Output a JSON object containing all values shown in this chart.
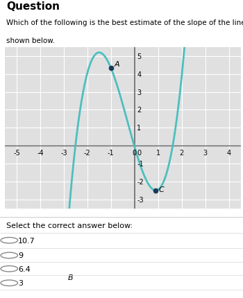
{
  "title": "Question",
  "question_line1": "Which of the following is the best estimate of the slope of the line tangent to the point B on the graph",
  "question_line2": "shown below.",
  "select_text": "Select the correct answer below:",
  "choices": [
    "10.7",
    "9",
    "6.4",
    "3"
  ],
  "xlim": [
    -5.5,
    4.5
  ],
  "ylim": [
    -3.5,
    5.5
  ],
  "xticks": [
    -5,
    -4,
    -3,
    -2,
    -1,
    0,
    1,
    2,
    3,
    4
  ],
  "yticks": [
    -3,
    -2,
    -1,
    0,
    1,
    2,
    3,
    4,
    5
  ],
  "curve_color": "#4dbfbf",
  "point_color": "#1a3a5c",
  "bg_color": "#e0e0e0",
  "grid_color": "#ffffff",
  "axis_color": "#666666",
  "curve_x_start": -4.05,
  "curve_x_end": 2.85,
  "k": 3.34,
  "C_const": -0.06,
  "point_B_x": -3.0,
  "point_A_x": -1.0,
  "point_C_x": 0.9,
  "title_fontsize": 11,
  "question_fontsize": 7.5,
  "tick_fontsize": 7,
  "choice_fontsize": 8
}
